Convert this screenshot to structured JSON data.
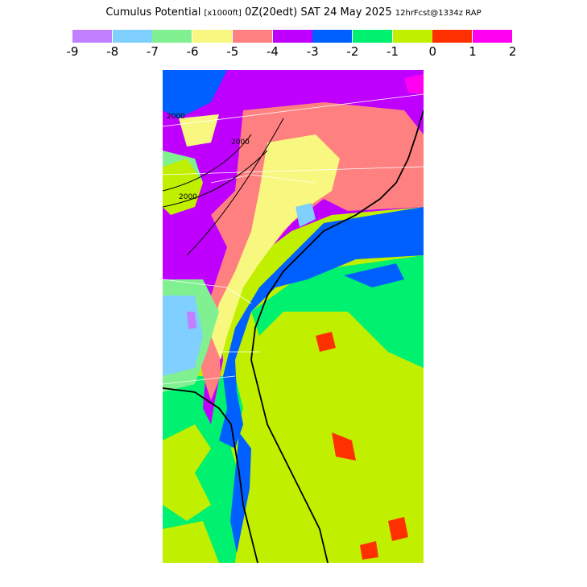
{
  "title": {
    "product": "Cumulus Potential",
    "units": "[x1000ft]",
    "valid": "0Z(20edt) SAT 24 May 2025",
    "forecast": "12hrFcst@1334z RAP"
  },
  "legend": {
    "colors": [
      "#c080ff",
      "#80d0ff",
      "#80f090",
      "#f8f880",
      "#ff8080",
      "#c000ff",
      "#0060ff",
      "#00f070",
      "#c0f000",
      "#ff3000",
      "#ff00f0"
    ],
    "ticks": [
      "-9",
      "-8",
      "-7",
      "-6",
      "-5",
      "-4",
      "-3",
      "-2",
      "-1",
      "0",
      "1",
      "2"
    ]
  },
  "map": {
    "contour_labels": [
      "2000",
      "2000",
      "2000"
    ]
  }
}
